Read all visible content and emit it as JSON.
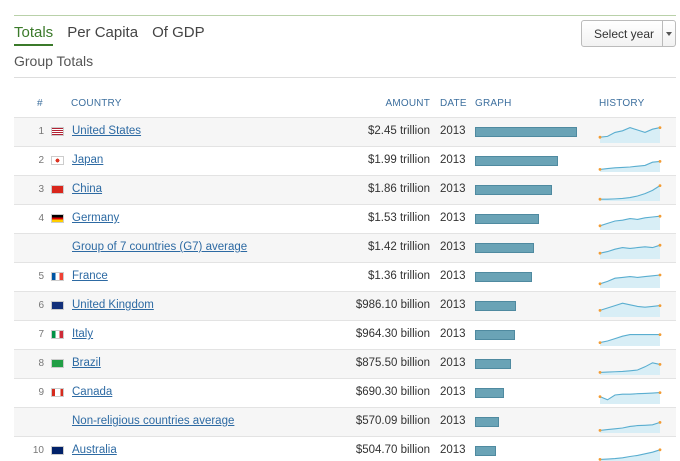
{
  "tabs": [
    {
      "label": "Totals",
      "active": true
    },
    {
      "label": "Per Capita",
      "active": false
    },
    {
      "label": "Of GDP",
      "active": false
    }
  ],
  "year_select": {
    "label": "Select year"
  },
  "section_title": "Group Totals",
  "headers": {
    "num": "#",
    "country": "COUNTRY",
    "amount": "AMOUNT",
    "date": "DATE",
    "graph": "GRAPH",
    "history": "HISTORY"
  },
  "colors": {
    "accent": "#3b7a2a",
    "link": "#2d6aa3",
    "bar": "#6aa3b6",
    "spark_line": "#5aaed0",
    "spark_fill": "#d8eef6",
    "spark_dot": "#f39c34"
  },
  "rows": [
    {
      "rank": "1",
      "flag": "us",
      "name": "United States",
      "amount": "$2.45 trillion",
      "date": "2013",
      "value": 2.45,
      "spark": [
        0.3,
        0.35,
        0.6,
        0.7,
        0.9,
        0.75,
        0.6,
        0.8,
        0.9
      ]
    },
    {
      "rank": "2",
      "flag": "jp",
      "name": "Japan",
      "amount": "$1.99 trillion",
      "date": "2013",
      "value": 1.99,
      "spark": [
        0.1,
        0.15,
        0.2,
        0.22,
        0.25,
        0.3,
        0.35,
        0.55,
        0.6
      ]
    },
    {
      "rank": "3",
      "flag": "cn",
      "name": "China",
      "amount": "$1.86 trillion",
      "date": "2013",
      "value": 1.86,
      "spark": [
        0.05,
        0.05,
        0.07,
        0.1,
        0.15,
        0.25,
        0.4,
        0.6,
        0.9
      ]
    },
    {
      "rank": "4",
      "flag": "de",
      "name": "Germany",
      "amount": "$1.53 trillion",
      "date": "2013",
      "value": 1.53,
      "spark": [
        0.2,
        0.35,
        0.5,
        0.55,
        0.65,
        0.6,
        0.7,
        0.75,
        0.8
      ]
    },
    {
      "rank": "",
      "flag": "",
      "name": "Group of 7 countries (G7) average",
      "amount": "$1.42 trillion",
      "date": "2013",
      "value": 1.42,
      "spark": [
        0.3,
        0.4,
        0.55,
        0.65,
        0.6,
        0.65,
        0.7,
        0.65,
        0.8
      ]
    },
    {
      "rank": "5",
      "flag": "fr",
      "name": "France",
      "amount": "$1.36 trillion",
      "date": "2013",
      "value": 1.36,
      "spark": [
        0.2,
        0.35,
        0.55,
        0.6,
        0.65,
        0.6,
        0.65,
        0.7,
        0.75
      ]
    },
    {
      "rank": "6",
      "flag": "gb",
      "name": "United Kingdom",
      "amount": "$986.10 billion",
      "date": "2013",
      "value": 0.9861,
      "spark": [
        0.35,
        0.5,
        0.65,
        0.8,
        0.7,
        0.6,
        0.55,
        0.6,
        0.65
      ]
    },
    {
      "rank": "7",
      "flag": "it",
      "name": "Italy",
      "amount": "$964.30 billion",
      "date": "2013",
      "value": 0.9643,
      "spark": [
        0.15,
        0.25,
        0.4,
        0.55,
        0.65,
        0.65,
        0.65,
        0.65,
        0.65
      ]
    },
    {
      "rank": "8",
      "flag": "br",
      "name": "Brazil",
      "amount": "$875.50 billion",
      "date": "2013",
      "value": 0.8755,
      "spark": [
        0.1,
        0.12,
        0.14,
        0.16,
        0.2,
        0.25,
        0.45,
        0.7,
        0.6
      ]
    },
    {
      "rank": "9",
      "flag": "ca",
      "name": "Canada",
      "amount": "$690.30 billion",
      "date": "2013",
      "value": 0.6903,
      "spark": [
        0.4,
        0.2,
        0.5,
        0.55,
        0.55,
        0.58,
        0.6,
        0.62,
        0.65
      ]
    },
    {
      "rank": "",
      "flag": "",
      "name": "Non-religious countries average",
      "amount": "$570.09 billion",
      "date": "2013",
      "value": 0.57009,
      "spark": [
        0.1,
        0.15,
        0.2,
        0.25,
        0.35,
        0.4,
        0.42,
        0.45,
        0.6
      ]
    },
    {
      "rank": "10",
      "flag": "au",
      "name": "Australia",
      "amount": "$504.70 billion",
      "date": "2013",
      "value": 0.5047,
      "spark": [
        0.1,
        0.12,
        0.15,
        0.2,
        0.28,
        0.35,
        0.45,
        0.55,
        0.7
      ]
    }
  ]
}
